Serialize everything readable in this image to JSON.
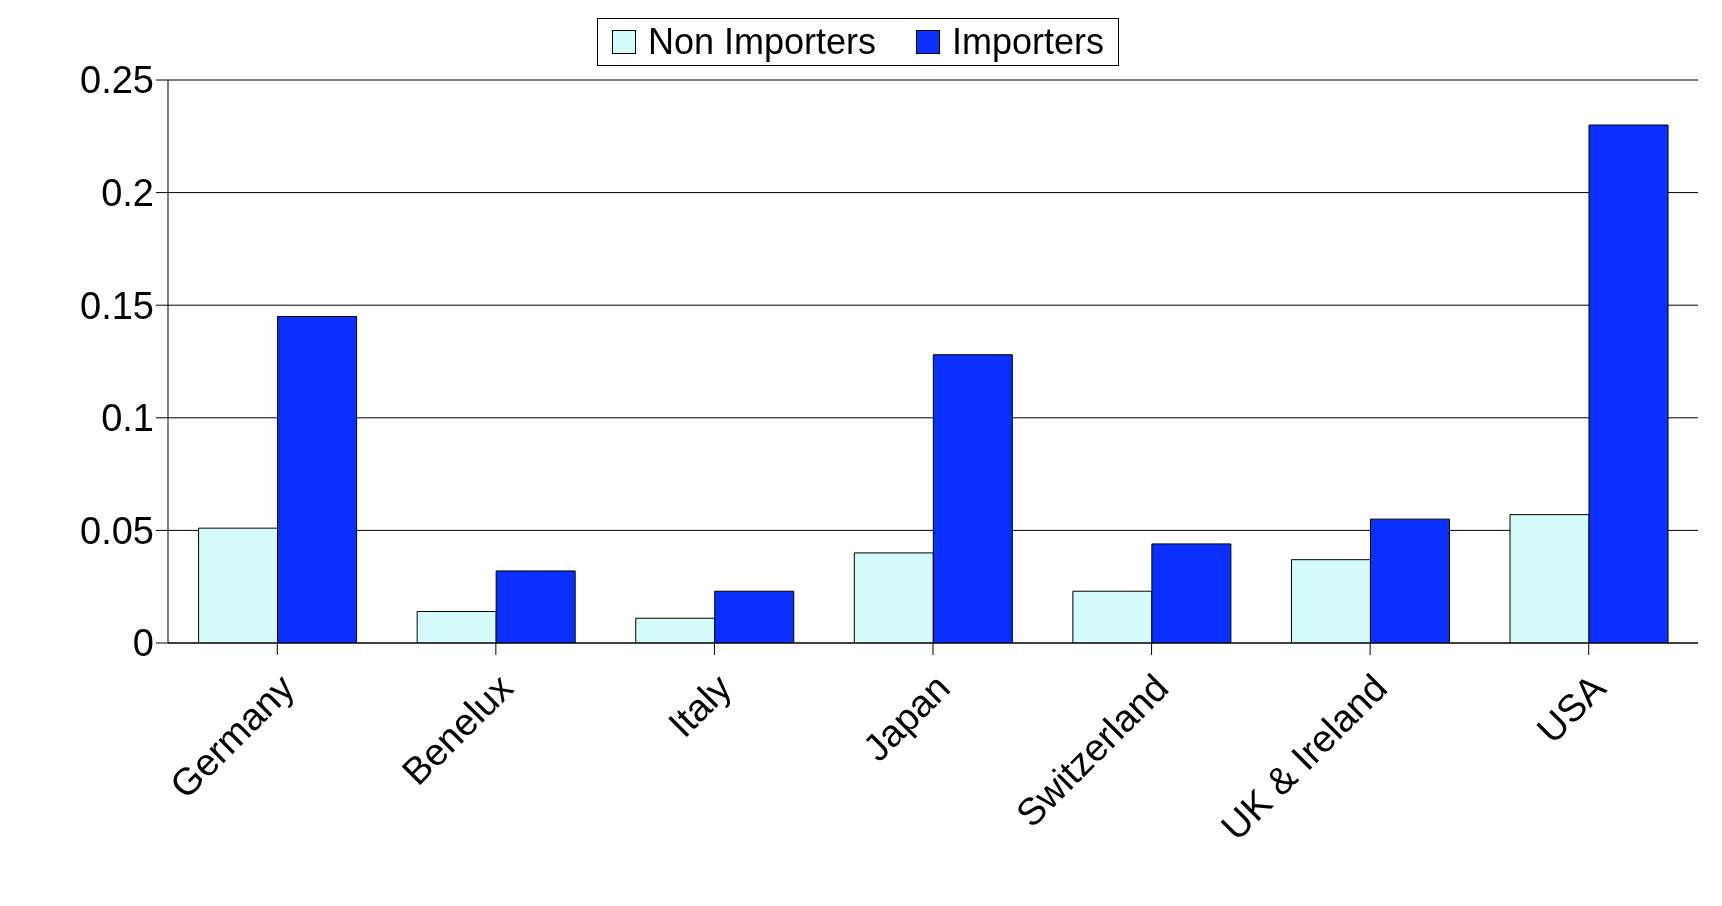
{
  "chart_data": {
    "type": "bar",
    "categories": [
      "Germany",
      "Benelux",
      "Italy",
      "Japan",
      "Switzerland",
      "UK & Ireland",
      "USA"
    ],
    "series": [
      {
        "name": "Non Importers",
        "color": "#d4fafa",
        "values": [
          0.051,
          0.014,
          0.011,
          0.04,
          0.023,
          0.037,
          0.057
        ]
      },
      {
        "name": "Importers",
        "color": "#0a2fff",
        "values": [
          0.145,
          0.032,
          0.023,
          0.128,
          0.044,
          0.055,
          0.23
        ]
      }
    ],
    "ylim": [
      0,
      0.25
    ],
    "yticks": [
      0,
      0.05,
      0.1,
      0.15,
      0.2,
      0.25
    ],
    "grid": "y",
    "legend": "top"
  }
}
